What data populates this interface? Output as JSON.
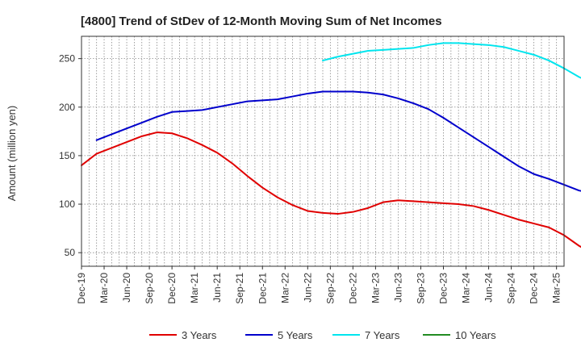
{
  "chart_data": {
    "type": "line",
    "title": "[4800]  Trend of StDev of 12-Month Moving Sum of Net Incomes",
    "xlabel": "",
    "ylabel": "Amount (million yen)",
    "x_ticks": [
      "Dec-19",
      "Mar-20",
      "Jun-20",
      "Sep-20",
      "Dec-20",
      "Mar-21",
      "Jun-21",
      "Sep-21",
      "Dec-21",
      "Mar-22",
      "Jun-22",
      "Sep-22",
      "Dec-22",
      "Mar-23",
      "Jun-23",
      "Sep-23",
      "Dec-23",
      "Mar-24",
      "Jun-24",
      "Sep-24",
      "Dec-24",
      "Mar-25"
    ],
    "y_ticks": [
      50,
      100,
      150,
      200,
      250
    ],
    "ylim": [
      36,
      273
    ],
    "grid": true,
    "legend_position": "bottom",
    "series": [
      {
        "name": "3 Years",
        "color": "#e00000",
        "values": [
          [
            0,
            140
          ],
          [
            1,
            152
          ],
          [
            2,
            158
          ],
          [
            3,
            164
          ],
          [
            4,
            170
          ],
          [
            5,
            174
          ],
          [
            6,
            173
          ],
          [
            7,
            168
          ],
          [
            8,
            161
          ],
          [
            9,
            153
          ],
          [
            10,
            142
          ],
          [
            11,
            129
          ],
          [
            12,
            117
          ],
          [
            13,
            107
          ],
          [
            14,
            99
          ],
          [
            15,
            93
          ],
          [
            16,
            91
          ],
          [
            17,
            90
          ],
          [
            18,
            92
          ],
          [
            19,
            96
          ],
          [
            20,
            102
          ],
          [
            21,
            104
          ],
          [
            22,
            103
          ],
          [
            23,
            102
          ],
          [
            24,
            101
          ],
          [
            25,
            100
          ],
          [
            26,
            98
          ],
          [
            27,
            94
          ],
          [
            28,
            89
          ],
          [
            29,
            84
          ],
          [
            30,
            80
          ],
          [
            31,
            76
          ],
          [
            32,
            68
          ],
          [
            33,
            57
          ],
          [
            34,
            48
          ],
          [
            35,
            41
          ]
        ]
      },
      {
        "name": "5 Years",
        "color": "#0000cc",
        "values": [
          [
            1,
            166
          ],
          [
            2,
            172
          ],
          [
            3,
            178
          ],
          [
            4,
            184
          ],
          [
            5,
            190
          ],
          [
            6,
            195
          ],
          [
            7,
            196
          ],
          [
            8,
            197
          ],
          [
            9,
            200
          ],
          [
            10,
            203
          ],
          [
            11,
            206
          ],
          [
            12,
            207
          ],
          [
            13,
            208
          ],
          [
            14,
            211
          ],
          [
            15,
            214
          ],
          [
            16,
            216
          ],
          [
            17,
            216
          ],
          [
            18,
            216
          ],
          [
            19,
            215
          ],
          [
            20,
            213
          ],
          [
            21,
            209
          ],
          [
            22,
            204
          ],
          [
            23,
            198
          ],
          [
            24,
            189
          ],
          [
            25,
            179
          ],
          [
            26,
            169
          ],
          [
            27,
            159
          ],
          [
            28,
            149
          ],
          [
            29,
            139
          ],
          [
            30,
            131
          ],
          [
            31,
            126
          ],
          [
            32,
            120
          ],
          [
            33,
            114
          ],
          [
            34,
            111
          ],
          [
            35,
            110
          ]
        ]
      },
      {
        "name": "7 Years",
        "color": "#00e5ee",
        "values": [
          [
            16,
            248
          ],
          [
            17,
            252
          ],
          [
            18,
            255
          ],
          [
            19,
            258
          ],
          [
            20,
            259
          ],
          [
            21,
            260
          ],
          [
            22,
            261
          ],
          [
            23,
            264
          ],
          [
            24,
            266
          ],
          [
            25,
            266
          ],
          [
            26,
            265
          ],
          [
            27,
            264
          ],
          [
            28,
            262
          ],
          [
            29,
            258
          ],
          [
            30,
            254
          ],
          [
            31,
            248
          ],
          [
            32,
            240
          ],
          [
            33,
            231
          ],
          [
            34,
            224
          ]
        ]
      },
      {
        "name": "10 Years",
        "color": "#228b22",
        "values": []
      }
    ]
  }
}
